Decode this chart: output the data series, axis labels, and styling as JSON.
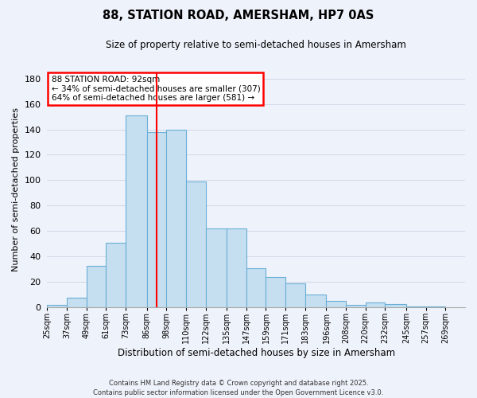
{
  "title": "88, STATION ROAD, AMERSHAM, HP7 0AS",
  "subtitle": "Size of property relative to semi-detached houses in Amersham",
  "xlabel": "Distribution of semi-detached houses by size in Amersham",
  "ylabel": "Number of semi-detached properties",
  "bar_labels": [
    "25sqm",
    "37sqm",
    "49sqm",
    "61sqm",
    "73sqm",
    "86sqm",
    "98sqm",
    "110sqm",
    "122sqm",
    "135sqm",
    "147sqm",
    "159sqm",
    "171sqm",
    "183sqm",
    "196sqm",
    "208sqm",
    "220sqm",
    "232sqm",
    "245sqm",
    "257sqm",
    "269sqm"
  ],
  "bar_values": [
    2,
    8,
    33,
    51,
    151,
    138,
    140,
    99,
    62,
    62,
    31,
    24,
    19,
    10,
    5,
    2,
    4,
    3,
    1,
    1
  ],
  "bar_edges": [
    25,
    37,
    49,
    61,
    73,
    86,
    98,
    110,
    122,
    135,
    147,
    159,
    171,
    183,
    196,
    208,
    220,
    232,
    245,
    257,
    269
  ],
  "bar_color": "#c5dff0",
  "bar_edge_color": "#6aaed6",
  "grid_color": "#d0d8e8",
  "vline_x": 92,
  "vline_color": "red",
  "annotation_text": "88 STATION ROAD: 92sqm\n← 34% of semi-detached houses are smaller (307)\n64% of semi-detached houses are larger (581) →",
  "annotation_box_color": "white",
  "annotation_box_edge": "red",
  "ylim": [
    0,
    185
  ],
  "yticks": [
    0,
    20,
    40,
    60,
    80,
    100,
    120,
    140,
    160,
    180
  ],
  "footer": "Contains HM Land Registry data © Crown copyright and database right 2025.\nContains public sector information licensed under the Open Government Licence v3.0.",
  "bg_color": "#eef2fa"
}
